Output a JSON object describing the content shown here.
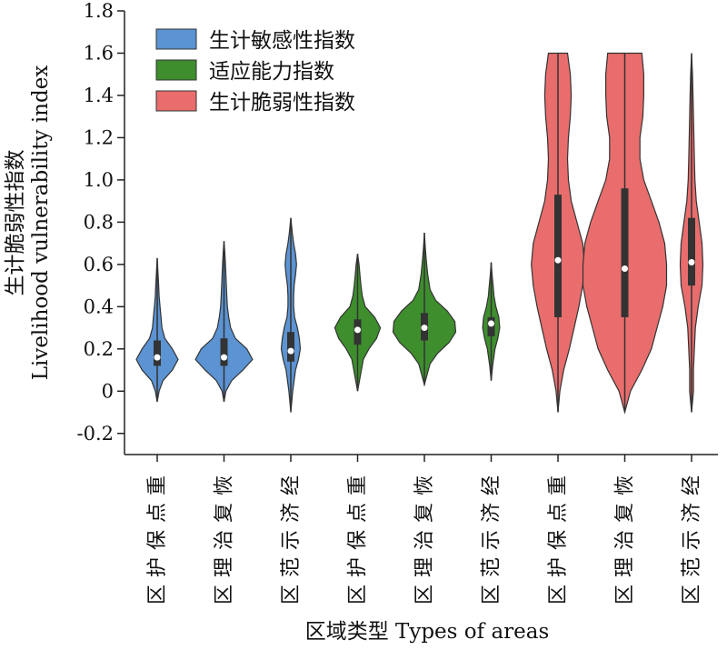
{
  "chart_data": {
    "type": "violin",
    "xlabel": "区域类型 Types of areas",
    "ylabel": [
      "生计脆弱性指数",
      "Livelihood vulnerability index"
    ],
    "ylim": [
      -0.3,
      1.8
    ],
    "yticks": [
      {
        "value": 1.8,
        "label": "1.8"
      },
      {
        "value": 1.6,
        "label": "1.6"
      },
      {
        "value": 1.4,
        "label": "1.4"
      },
      {
        "value": 1.2,
        "label": "1.2"
      },
      {
        "value": 1.0,
        "label": "1.0"
      },
      {
        "value": 0.8,
        "label": "0.8"
      },
      {
        "value": 0.6,
        "label": "0.6"
      },
      {
        "value": 0.4,
        "label": "0.4"
      },
      {
        "value": 0.2,
        "label": "0.2"
      },
      {
        "value": 0,
        "label": "0"
      },
      {
        "value": -0.2,
        "label": "-0.2"
      }
    ],
    "categories": [
      "重点保护区",
      "恢复治理区",
      "经济示范区",
      "重点保护区",
      "恢复治理区",
      "经济示范区",
      "重点保护区",
      "恢复治理区",
      "经济示范区"
    ],
    "legend": {
      "position": "top-left"
    },
    "series": [
      {
        "name": "生计敏感性指数",
        "color": "#5b93d3",
        "violins": [
          {
            "min": -0.05,
            "max": 0.63,
            "q1": 0.12,
            "median": 0.16,
            "q3": 0.24,
            "profile": [
              [
                -0.05,
                0
              ],
              [
                0.0,
                0.02
              ],
              [
                0.05,
                0.06
              ],
              [
                0.1,
                0.16
              ],
              [
                0.15,
                0.22
              ],
              [
                0.2,
                0.16
              ],
              [
                0.25,
                0.08
              ],
              [
                0.3,
                0.05
              ],
              [
                0.35,
                0.04
              ],
              [
                0.4,
                0.03
              ],
              [
                0.45,
                0.02
              ],
              [
                0.5,
                0.015
              ],
              [
                0.55,
                0.01
              ],
              [
                0.63,
                0
              ]
            ]
          },
          {
            "min": -0.05,
            "max": 0.71,
            "q1": 0.12,
            "median": 0.16,
            "q3": 0.25,
            "profile": [
              [
                -0.05,
                0
              ],
              [
                0.0,
                0.02
              ],
              [
                0.05,
                0.08
              ],
              [
                0.1,
                0.2
              ],
              [
                0.15,
                0.3
              ],
              [
                0.2,
                0.24
              ],
              [
                0.25,
                0.12
              ],
              [
                0.3,
                0.07
              ],
              [
                0.35,
                0.05
              ],
              [
                0.4,
                0.035
              ],
              [
                0.45,
                0.03
              ],
              [
                0.5,
                0.025
              ],
              [
                0.55,
                0.02
              ],
              [
                0.6,
                0.015
              ],
              [
                0.65,
                0.01
              ],
              [
                0.71,
                0
              ]
            ]
          },
          {
            "min": -0.1,
            "max": 0.82,
            "q1": 0.14,
            "median": 0.19,
            "q3": 0.28,
            "profile": [
              [
                -0.1,
                0
              ],
              [
                0.0,
                0.02
              ],
              [
                0.1,
                0.05
              ],
              [
                0.15,
                0.08
              ],
              [
                0.2,
                0.1
              ],
              [
                0.25,
                0.09
              ],
              [
                0.3,
                0.07
              ],
              [
                0.35,
                0.04
              ],
              [
                0.4,
                0.03
              ],
              [
                0.45,
                0.03
              ],
              [
                0.5,
                0.035
              ],
              [
                0.55,
                0.05
              ],
              [
                0.6,
                0.06
              ],
              [
                0.65,
                0.05
              ],
              [
                0.7,
                0.03
              ],
              [
                0.75,
                0.015
              ],
              [
                0.82,
                0
              ]
            ]
          }
        ]
      },
      {
        "name": "适应能力指数",
        "color": "#3e8e2e",
        "violins": [
          {
            "min": 0.0,
            "max": 0.65,
            "q1": 0.22,
            "median": 0.29,
            "q3": 0.34,
            "profile": [
              [
                0.0,
                0
              ],
              [
                0.05,
                0.02
              ],
              [
                0.1,
                0.04
              ],
              [
                0.15,
                0.06
              ],
              [
                0.2,
                0.12
              ],
              [
                0.25,
                0.2
              ],
              [
                0.3,
                0.24
              ],
              [
                0.35,
                0.18
              ],
              [
                0.4,
                0.08
              ],
              [
                0.45,
                0.05
              ],
              [
                0.5,
                0.035
              ],
              [
                0.55,
                0.025
              ],
              [
                0.6,
                0.015
              ],
              [
                0.65,
                0
              ]
            ]
          },
          {
            "min": 0.03,
            "max": 0.75,
            "q1": 0.24,
            "median": 0.3,
            "q3": 0.37,
            "profile": [
              [
                0.03,
                0
              ],
              [
                0.08,
                0.03
              ],
              [
                0.13,
                0.06
              ],
              [
                0.18,
                0.14
              ],
              [
                0.23,
                0.26
              ],
              [
                0.28,
                0.33
              ],
              [
                0.33,
                0.32
              ],
              [
                0.38,
                0.24
              ],
              [
                0.43,
                0.12
              ],
              [
                0.48,
                0.06
              ],
              [
                0.55,
                0.035
              ],
              [
                0.62,
                0.02
              ],
              [
                0.68,
                0.01
              ],
              [
                0.75,
                0
              ]
            ]
          },
          {
            "min": 0.05,
            "max": 0.61,
            "q1": 0.26,
            "median": 0.32,
            "q3": 0.35,
            "profile": [
              [
                0.05,
                0
              ],
              [
                0.12,
                0.015
              ],
              [
                0.2,
                0.04
              ],
              [
                0.25,
                0.07
              ],
              [
                0.3,
                0.09
              ],
              [
                0.35,
                0.08
              ],
              [
                0.4,
                0.05
              ],
              [
                0.45,
                0.03
              ],
              [
                0.5,
                0.02
              ],
              [
                0.55,
                0.01
              ],
              [
                0.61,
                0
              ]
            ]
          }
        ]
      },
      {
        "name": "生计脆弱性指数",
        "color": "#e96d6d",
        "violins": [
          {
            "min": -0.1,
            "max": 1.6,
            "q1": 0.35,
            "median": 0.62,
            "q3": 0.93,
            "profile": [
              [
                -0.1,
                0
              ],
              [
                0.0,
                0.02
              ],
              [
                0.1,
                0.06
              ],
              [
                0.2,
                0.12
              ],
              [
                0.3,
                0.17
              ],
              [
                0.4,
                0.22
              ],
              [
                0.5,
                0.26
              ],
              [
                0.6,
                0.28
              ],
              [
                0.7,
                0.26
              ],
              [
                0.8,
                0.2
              ],
              [
                0.9,
                0.14
              ],
              [
                1.0,
                0.11
              ],
              [
                1.1,
                0.1
              ],
              [
                1.2,
                0.11
              ],
              [
                1.3,
                0.13
              ],
              [
                1.4,
                0.14
              ],
              [
                1.5,
                0.13
              ],
              [
                1.6,
                0.1
              ]
            ]
          },
          {
            "min": -0.1,
            "max": 1.6,
            "q1": 0.35,
            "median": 0.58,
            "q3": 0.96,
            "profile": [
              [
                -0.1,
                0
              ],
              [
                0.0,
                0.06
              ],
              [
                0.1,
                0.18
              ],
              [
                0.2,
                0.28
              ],
              [
                0.3,
                0.34
              ],
              [
                0.4,
                0.4
              ],
              [
                0.5,
                0.44
              ],
              [
                0.6,
                0.44
              ],
              [
                0.7,
                0.42
              ],
              [
                0.8,
                0.36
              ],
              [
                0.9,
                0.28
              ],
              [
                1.0,
                0.2
              ],
              [
                1.1,
                0.16
              ],
              [
                1.2,
                0.16
              ],
              [
                1.3,
                0.19
              ],
              [
                1.4,
                0.2
              ],
              [
                1.5,
                0.2
              ],
              [
                1.6,
                0.18
              ]
            ]
          },
          {
            "min": -0.1,
            "max": 1.6,
            "q1": 0.5,
            "median": 0.61,
            "q3": 0.82,
            "profile": [
              [
                -0.1,
                0
              ],
              [
                0.0,
                0.02
              ],
              [
                0.1,
                0.02
              ],
              [
                0.2,
                0.03
              ],
              [
                0.3,
                0.04
              ],
              [
                0.4,
                0.07
              ],
              [
                0.5,
                0.11
              ],
              [
                0.6,
                0.12
              ],
              [
                0.7,
                0.11
              ],
              [
                0.8,
                0.08
              ],
              [
                0.9,
                0.05
              ],
              [
                1.0,
                0.035
              ],
              [
                1.1,
                0.03
              ],
              [
                1.2,
                0.025
              ],
              [
                1.3,
                0.02
              ],
              [
                1.4,
                0.015
              ],
              [
                1.5,
                0.01
              ],
              [
                1.6,
                0
              ]
            ]
          }
        ]
      }
    ]
  }
}
